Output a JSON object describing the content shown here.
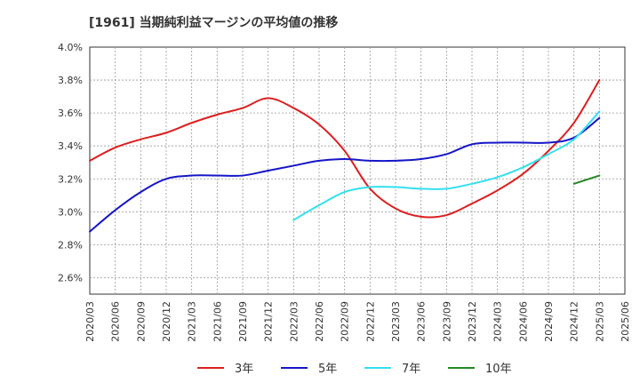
{
  "chart_data": {
    "type": "line",
    "title": "[1961]  当期純利益マージンの平均値の推移",
    "xlabel": "",
    "ylabel": "",
    "ylim": [
      2.5,
      4.0
    ],
    "yticks": [
      "2.6%",
      "2.8%",
      "3.0%",
      "3.2%",
      "3.4%",
      "3.6%",
      "3.8%",
      "4.0%"
    ],
    "ytick_values": [
      2.6,
      2.8,
      3.0,
      3.2,
      3.4,
      3.6,
      3.8,
      4.0
    ],
    "categories": [
      "2020/03",
      "2020/06",
      "2020/09",
      "2020/12",
      "2021/03",
      "2021/06",
      "2021/09",
      "2021/12",
      "2022/03",
      "2022/06",
      "2022/09",
      "2022/12",
      "2023/03",
      "2023/06",
      "2023/09",
      "2023/12",
      "2024/03",
      "2024/06",
      "2024/09",
      "2024/12",
      "2025/03",
      "2025/06"
    ],
    "grid": true,
    "legend_position": "bottom",
    "series": [
      {
        "name": "3年",
        "color": "#dd1f1f",
        "values": [
          3.31,
          3.39,
          3.44,
          3.48,
          3.54,
          3.59,
          3.63,
          3.69,
          3.63,
          3.53,
          3.37,
          3.14,
          3.02,
          2.97,
          2.98,
          3.05,
          3.13,
          3.23,
          3.37,
          3.54,
          3.8,
          null
        ]
      },
      {
        "name": "5年",
        "color": "#1616c8",
        "values": [
          2.88,
          3.01,
          3.12,
          3.2,
          3.22,
          3.22,
          3.22,
          3.25,
          3.28,
          3.31,
          3.32,
          3.31,
          3.31,
          3.32,
          3.35,
          3.41,
          3.42,
          3.42,
          3.42,
          3.45,
          3.57,
          null
        ]
      },
      {
        "name": "7年",
        "color": "#33e0f0",
        "values": [
          null,
          null,
          null,
          null,
          null,
          null,
          null,
          null,
          2.95,
          3.04,
          3.12,
          3.15,
          3.15,
          3.14,
          3.14,
          3.17,
          3.21,
          3.27,
          3.35,
          3.44,
          3.61,
          null
        ]
      },
      {
        "name": "10年",
        "color": "#228822",
        "values": [
          null,
          null,
          null,
          null,
          null,
          null,
          null,
          null,
          null,
          null,
          null,
          null,
          null,
          null,
          null,
          null,
          null,
          null,
          null,
          3.17,
          3.22,
          null
        ]
      }
    ]
  }
}
